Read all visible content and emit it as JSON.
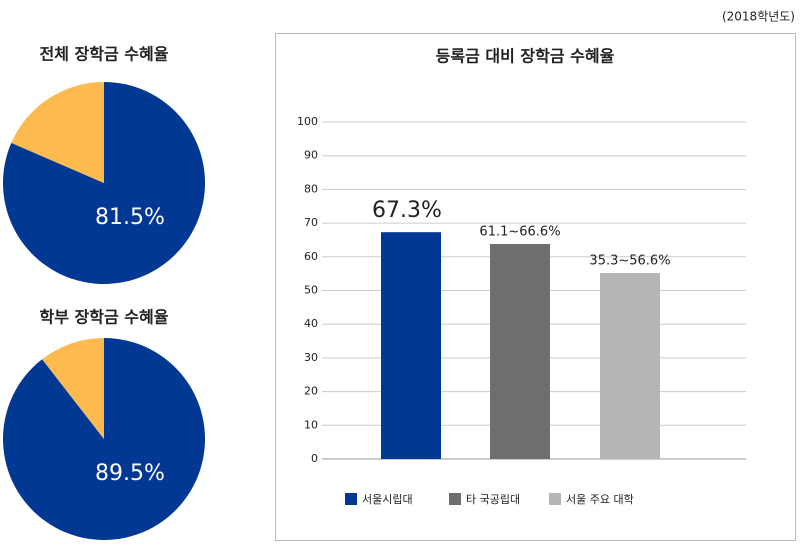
{
  "note": "(2018학년도)",
  "chart_data": [
    {
      "type": "pie",
      "title": "전체 장학금 수혜율",
      "values": [
        81.5,
        18.5
      ],
      "value_labels": [
        "81.5%",
        null
      ],
      "colors": [
        "#003893",
        "#fdbb4f"
      ]
    },
    {
      "type": "pie",
      "title": "학부 장학금 수혜율",
      "values": [
        89.5,
        10.5
      ],
      "value_labels": [
        "89.5%",
        null
      ],
      "colors": [
        "#003893",
        "#fdbb4f"
      ]
    },
    {
      "type": "bar",
      "title": "등록금 대비 장학금 수혜율",
      "categories": [
        "서울시립대",
        "타 국공립대",
        "서울 주요 대학"
      ],
      "values": [
        67.3,
        63.8,
        55.2
      ],
      "value_labels": [
        "67.3%",
        "61.1~66.6%",
        "35.3~56.6%"
      ],
      "colors": [
        "#003893",
        "#6d6e70",
        "#b5b5b5"
      ],
      "ylim": [
        0,
        100
      ],
      "yticks": [
        0,
        10,
        20,
        30,
        40,
        50,
        60,
        70,
        80,
        90,
        100
      ],
      "grid": true,
      "legend": "bottom"
    }
  ]
}
